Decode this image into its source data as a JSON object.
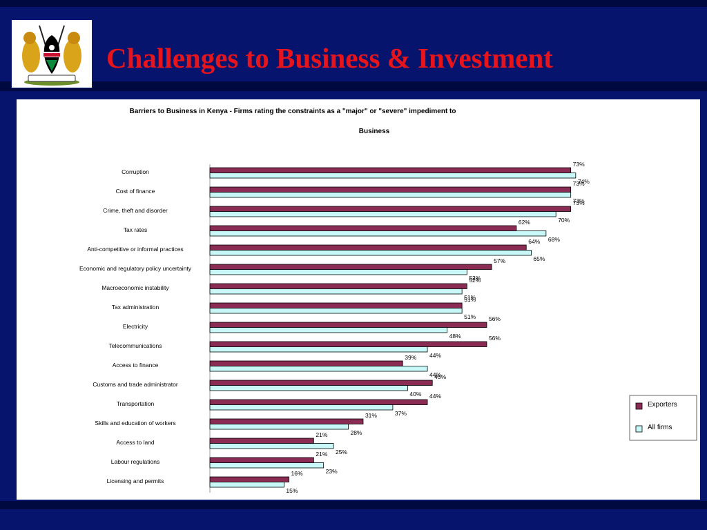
{
  "slide": {
    "title": "Challenges to Business & Investment"
  },
  "colors": {
    "background": "#06146e",
    "title": "#e8141c",
    "exporters": "#8b2c55",
    "all_firms": "#c8f8f8"
  },
  "logo": {
    "icon": "kenya-coat-of-arms-icon"
  },
  "chart_data": {
    "type": "bar",
    "orientation": "horizontal",
    "title": "Barriers to Business in Kenya - Firms rating the constraints as a \"major\" or \"severe\" impediment to",
    "title_line2": "Business",
    "xlim": [
      0,
      100
    ],
    "grid": false,
    "legend_position": "right",
    "categories": [
      "Corruption",
      "Cost of finance",
      "Crime, theft and disorder",
      "Tax rates",
      "Anti-competitive or informal practices",
      "Economic and regulatory policy uncertainty",
      "Macroeconomic instability",
      "Tax administration",
      "Electricity",
      "Telecommunications",
      "Access to finance",
      "Customs and trade administrator",
      "Transportation",
      "Skills and education of workers",
      "Access to land",
      "Labour regulations",
      "Licensing and permits"
    ],
    "series": [
      {
        "name": "Exporters",
        "values": [
          73,
          73,
          73,
          62,
          64,
          57,
          52,
          51,
          56,
          56,
          39,
          45,
          44,
          31,
          21,
          21,
          16
        ]
      },
      {
        "name": "All firms",
        "values": [
          74,
          73,
          70,
          68,
          65,
          52,
          51,
          51,
          48,
          44,
          44,
          40,
          37,
          28,
          25,
          23,
          15
        ]
      }
    ],
    "value_suffix": "%"
  }
}
